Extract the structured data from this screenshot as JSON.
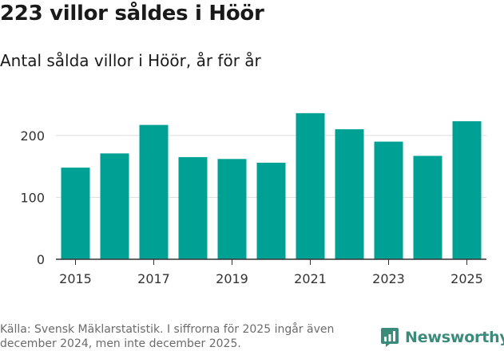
{
  "title": "223 villor såldes i Höör",
  "subtitle": "Antal sålda villor i Höör, år för år",
  "source": "Källa: Svensk Mäklarstatistik. I siffrorna för 2025 ingår även december 2024, men inte december 2025.",
  "brand": {
    "name": "Newsworthy",
    "color": "#3b8a7a"
  },
  "chart_data": {
    "type": "bar",
    "title": "223 villor såldes i Höör",
    "subtitle": "Antal sålda villor i Höör, år för år",
    "xlabel": "",
    "ylabel": "",
    "categories": [
      "2015",
      "2016",
      "2017",
      "2018",
      "2019",
      "2020",
      "2021",
      "2022",
      "2023",
      "2024",
      "2025"
    ],
    "values": [
      148,
      171,
      217,
      165,
      162,
      156,
      236,
      210,
      190,
      167,
      223
    ],
    "ylim": [
      0,
      250
    ],
    "yticks": [
      0,
      100,
      200
    ],
    "xtick_labels": [
      "2015",
      "2017",
      "2019",
      "2021",
      "2023",
      "2025"
    ],
    "bar_color": "#00a195",
    "grid": true
  }
}
